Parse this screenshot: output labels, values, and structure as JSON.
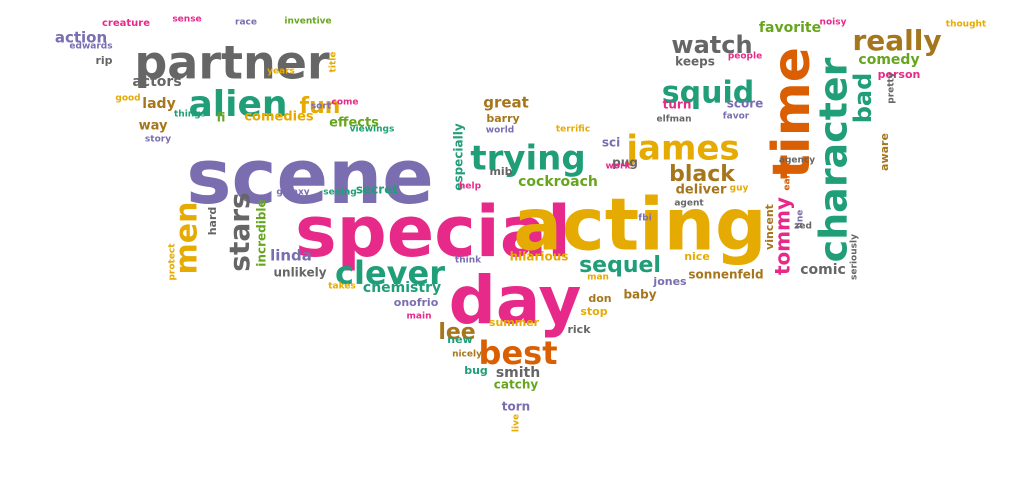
{
  "colors": {
    "purple": "#7a6eb0",
    "green": "#1f9e77",
    "orange": "#d95f02",
    "pink": "#e7298a",
    "olive": "#66a61e",
    "gold": "#e6ab02",
    "brown": "#a6761d",
    "gray": "#666666"
  },
  "words": [
    {
      "text": "scene",
      "color": "purple"
    },
    {
      "text": "special",
      "color": "pink"
    },
    {
      "text": "acting",
      "color": "gold"
    },
    {
      "text": "day",
      "color": "pink"
    },
    {
      "text": "time",
      "color": "orange"
    },
    {
      "text": "partner",
      "color": "gray"
    },
    {
      "text": "character",
      "color": "green"
    },
    {
      "text": "alien",
      "color": "green"
    },
    {
      "text": "trying",
      "color": "green"
    },
    {
      "text": "james",
      "color": "gold"
    },
    {
      "text": "clever",
      "color": "green"
    },
    {
      "text": "best",
      "color": "orange"
    },
    {
      "text": "really",
      "color": "brown"
    },
    {
      "text": "squid",
      "color": "green"
    },
    {
      "text": "watch",
      "color": "gray"
    },
    {
      "text": "black",
      "color": "brown"
    },
    {
      "text": "sequel",
      "color": "green"
    },
    {
      "text": "fun",
      "color": "gold"
    },
    {
      "text": "stars",
      "color": "gray"
    },
    {
      "text": "men",
      "color": "gold"
    },
    {
      "text": "tommy",
      "color": "pink"
    },
    {
      "text": "lee",
      "color": "brown"
    },
    {
      "text": "comedy",
      "color": "olive"
    },
    {
      "text": "bad",
      "color": "green"
    },
    {
      "text": "favorite",
      "color": "olive"
    },
    {
      "text": "comedies",
      "color": "gold"
    },
    {
      "text": "effects",
      "color": "olive"
    },
    {
      "text": "great",
      "color": "brown"
    },
    {
      "text": "cockroach",
      "color": "olive"
    },
    {
      "text": "chemistry",
      "color": "green"
    },
    {
      "text": "linda",
      "color": "purple"
    },
    {
      "text": "comic",
      "color": "gray"
    },
    {
      "text": "smith",
      "color": "gray"
    },
    {
      "text": "incredible",
      "color": "olive"
    },
    {
      "text": "action",
      "color": "purple"
    },
    {
      "text": "actors",
      "color": "gray"
    },
    {
      "text": "lady",
      "color": "brown"
    },
    {
      "text": "deliver",
      "color": "brown"
    },
    {
      "text": "person",
      "color": "pink"
    },
    {
      "text": "keeps",
      "color": "gray"
    },
    {
      "text": "baby",
      "color": "brown"
    },
    {
      "text": "hilarious",
      "color": "gold"
    },
    {
      "text": "nice",
      "color": "gold"
    },
    {
      "text": "jones",
      "color": "purple"
    },
    {
      "text": "sonnenfeld",
      "color": "brown"
    },
    {
      "text": "unlikely",
      "color": "gray"
    },
    {
      "text": "especially",
      "color": "green"
    },
    {
      "text": "secret",
      "color": "green"
    },
    {
      "text": "catchy",
      "color": "olive"
    },
    {
      "text": "summer",
      "color": "gold"
    },
    {
      "text": "onofrio",
      "color": "purple"
    },
    {
      "text": "barry",
      "color": "brown"
    },
    {
      "text": "don",
      "color": "brown"
    },
    {
      "text": "stop",
      "color": "gold"
    },
    {
      "text": "rick",
      "color": "gray"
    },
    {
      "text": "hard",
      "color": "gray"
    },
    {
      "text": "vincent",
      "color": "brown"
    },
    {
      "text": "torn",
      "color": "purple"
    },
    {
      "text": "score",
      "color": "purple"
    },
    {
      "text": "turn",
      "color": "pink"
    },
    {
      "text": "way",
      "color": "brown"
    },
    {
      "text": "bug",
      "color": "green"
    },
    {
      "text": "new",
      "color": "green"
    },
    {
      "text": "pug",
      "color": "gray"
    },
    {
      "text": "sci",
      "color": "purple"
    },
    {
      "text": "fi",
      "color": "olive"
    },
    {
      "text": "mib",
      "color": "gray"
    },
    {
      "text": "aware",
      "color": "brown"
    },
    {
      "text": "creature",
      "color": "pink"
    },
    {
      "text": "sense",
      "color": "pink"
    },
    {
      "text": "race",
      "color": "purple"
    },
    {
      "text": "inventive",
      "color": "olive"
    },
    {
      "text": "noisy",
      "color": "pink"
    },
    {
      "text": "thought",
      "color": "gold"
    },
    {
      "text": "edwards",
      "color": "purple"
    },
    {
      "text": "rip",
      "color": "gray"
    },
    {
      "text": "good",
      "color": "gold"
    },
    {
      "text": "years",
      "color": "gold"
    },
    {
      "text": "title",
      "color": "gold"
    },
    {
      "text": "sort",
      "color": "purple"
    },
    {
      "text": "come",
      "color": "pink"
    },
    {
      "text": "things",
      "color": "green"
    },
    {
      "text": "story",
      "color": "purple"
    },
    {
      "text": "viewings",
      "color": "green"
    },
    {
      "text": "world",
      "color": "purple"
    },
    {
      "text": "terrific",
      "color": "gold"
    },
    {
      "text": "people",
      "color": "pink"
    },
    {
      "text": "elfman",
      "color": "gray"
    },
    {
      "text": "favor",
      "color": "purple"
    },
    {
      "text": "pretty",
      "color": "gray"
    },
    {
      "text": "agency",
      "color": "gray"
    },
    {
      "text": "work",
      "color": "pink"
    },
    {
      "text": "galaxy",
      "color": "purple"
    },
    {
      "text": "seeing",
      "color": "green"
    },
    {
      "text": "help",
      "color": "pink"
    },
    {
      "text": "fbi",
      "color": "purple"
    },
    {
      "text": "agent",
      "color": "gray"
    },
    {
      "text": "guy",
      "color": "gold"
    },
    {
      "text": "earth",
      "color": "orange"
    },
    {
      "text": "line",
      "color": "purple"
    },
    {
      "text": "zed",
      "color": "gray"
    },
    {
      "text": "seriously",
      "color": "gray"
    },
    {
      "text": "protect",
      "color": "gold"
    },
    {
      "text": "think",
      "color": "purple"
    },
    {
      "text": "man",
      "color": "gold"
    },
    {
      "text": "takes",
      "color": "gold"
    },
    {
      "text": "main",
      "color": "pink"
    },
    {
      "text": "nicely",
      "color": "brown"
    },
    {
      "text": "live",
      "color": "gold"
    }
  ]
}
